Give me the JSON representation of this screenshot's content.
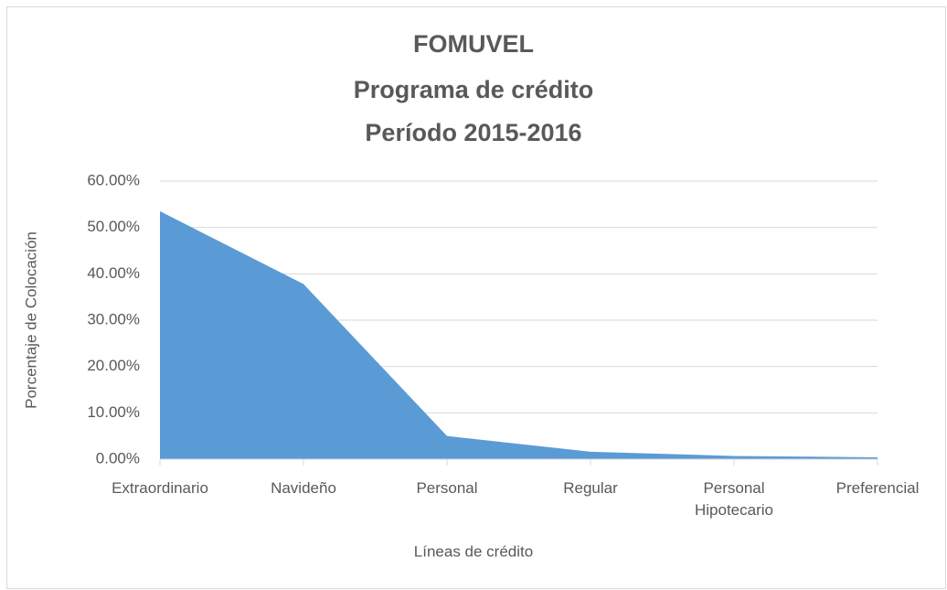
{
  "chart_data": {
    "type": "area",
    "title": [
      "FOMUVEL",
      "Programa de crédito",
      "Período 2015-2016"
    ],
    "x_label": "Líneas de crédito",
    "y_label": "Porcentaje de Colocación",
    "categories": [
      "Extraordinario",
      "Navideño",
      "Personal",
      "Regular",
      "Personal\nHipotecario",
      "Preferencial"
    ],
    "values": [
      53.5,
      37.8,
      5.0,
      1.6,
      0.7,
      0.4
    ],
    "color": "#5b9bd5",
    "ylim": [
      0,
      60
    ],
    "yticks": [
      {
        "value": 0,
        "label": "0.00%"
      },
      {
        "value": 10,
        "label": "10.00%"
      },
      {
        "value": 20,
        "label": "20.00%"
      },
      {
        "value": 30,
        "label": "30.00%"
      },
      {
        "value": 40,
        "label": "40.00%"
      },
      {
        "value": 50,
        "label": "50.00%"
      },
      {
        "value": 60,
        "label": "60.00%"
      }
    ],
    "grid": true
  }
}
